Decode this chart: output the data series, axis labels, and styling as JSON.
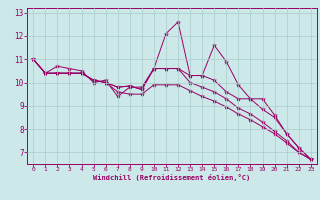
{
  "xlabel": "Windchill (Refroidissement éolien,°C)",
  "background_color": "#cce8e8",
  "line_color": "#990066",
  "grid_color": "#aacccc",
  "xlim": [
    -0.5,
    23.5
  ],
  "ylim": [
    6.5,
    13.2
  ],
  "xticks": [
    0,
    1,
    2,
    3,
    4,
    5,
    6,
    7,
    8,
    9,
    10,
    11,
    12,
    13,
    14,
    15,
    16,
    17,
    18,
    19,
    20,
    21,
    22,
    23
  ],
  "yticks": [
    7,
    8,
    9,
    10,
    11,
    12,
    13
  ],
  "series": [
    [
      11.0,
      10.4,
      10.7,
      10.6,
      10.5,
      10.0,
      10.1,
      9.4,
      9.8,
      9.8,
      10.6,
      12.1,
      12.6,
      10.3,
      10.3,
      11.6,
      10.9,
      9.9,
      9.3,
      9.3,
      8.6,
      7.8,
      7.2,
      6.7
    ],
    [
      11.0,
      10.4,
      10.4,
      10.4,
      10.4,
      10.1,
      10.0,
      9.8,
      9.85,
      9.7,
      10.6,
      10.6,
      10.6,
      10.3,
      10.3,
      10.1,
      9.6,
      9.3,
      9.3,
      8.85,
      8.5,
      7.8,
      7.2,
      6.7
    ],
    [
      11.0,
      10.4,
      10.4,
      10.4,
      10.4,
      10.1,
      10.0,
      9.8,
      9.85,
      9.7,
      10.6,
      10.6,
      10.6,
      10.0,
      9.8,
      9.6,
      9.3,
      8.9,
      8.65,
      8.3,
      7.9,
      7.5,
      7.0,
      6.7
    ],
    [
      11.0,
      10.4,
      10.4,
      10.4,
      10.4,
      10.1,
      10.0,
      9.6,
      9.5,
      9.5,
      9.9,
      9.9,
      9.9,
      9.65,
      9.4,
      9.2,
      8.95,
      8.65,
      8.4,
      8.1,
      7.8,
      7.4,
      7.0,
      6.7
    ]
  ]
}
